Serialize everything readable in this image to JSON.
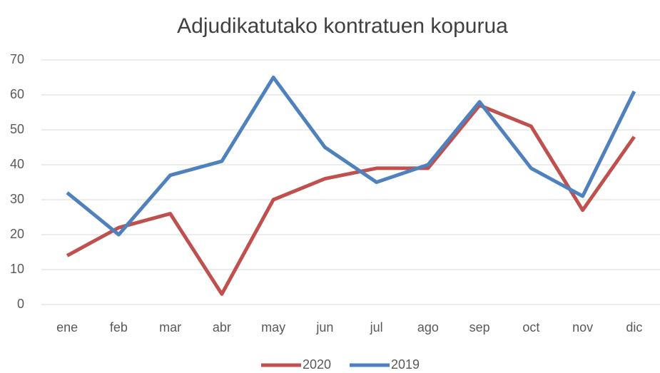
{
  "chart_data": {
    "type": "line",
    "title": "Adjudikatutako kontratuen kopurua",
    "categories": [
      "ene",
      "feb",
      "mar",
      "abr",
      "may",
      "jun",
      "jul",
      "ago",
      "sep",
      "oct",
      "nov",
      "dic"
    ],
    "series": [
      {
        "name": "2020",
        "color": "#c0504d",
        "values": [
          14,
          22,
          26,
          3,
          30,
          36,
          39,
          39,
          57,
          51,
          27,
          48
        ]
      },
      {
        "name": "2019",
        "color": "#4f81bd",
        "values": [
          32,
          20,
          37,
          41,
          65,
          45,
          35,
          40,
          58,
          39,
          31,
          61
        ]
      }
    ],
    "ylim": [
      0,
      70
    ],
    "yticks": [
      0,
      10,
      20,
      30,
      40,
      50,
      60,
      70
    ],
    "grid": true,
    "legend": "bottom"
  }
}
